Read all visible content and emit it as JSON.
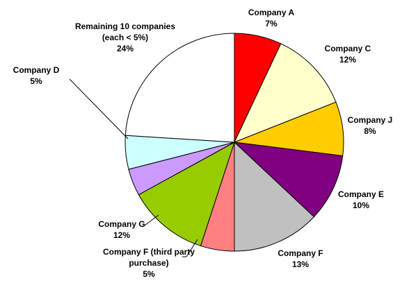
{
  "chart_data": {
    "type": "pie",
    "categories": [
      "Company A",
      "Company C",
      "Company J",
      "Company E",
      "Company F",
      "Company F (third party purchase)",
      "Company G",
      null,
      "Company D",
      "Remaining 10 companies (each < 5%)"
    ],
    "values": [
      7,
      12,
      8,
      10,
      13,
      5,
      12,
      4,
      5,
      24
    ],
    "value_labels": [
      "7%",
      "12%",
      "8%",
      "10%",
      "13%",
      "5%",
      "12%",
      null,
      "5%",
      "24%"
    ],
    "colors": [
      "#ff0000",
      "#ffffcc",
      "#ffcc00",
      "#800080",
      "#c0c0c0",
      "#ff8080",
      "#99cc00",
      "#cc99ff",
      "#ccffff",
      "#ffffff"
    ]
  }
}
